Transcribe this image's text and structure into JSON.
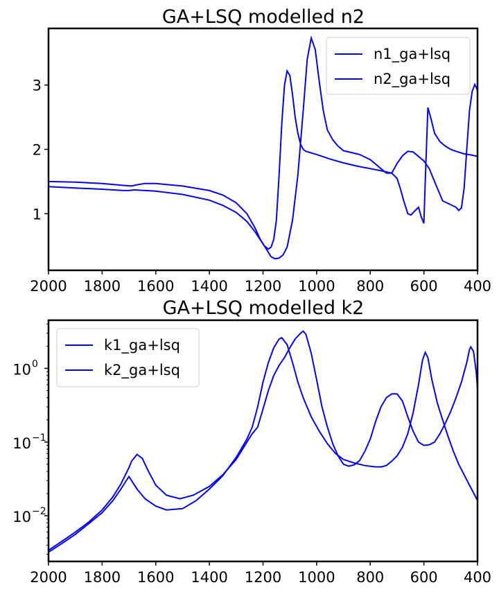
{
  "chart_data": [
    {
      "type": "line",
      "title": "GA+LSQ modelled n2",
      "xlabel": "",
      "ylabel": "",
      "xlim": [
        2000,
        400
      ],
      "ylim": [
        0.12,
        3.88
      ],
      "yscale": "linear",
      "xticks": [
        2000,
        1800,
        1600,
        1400,
        1200,
        1000,
        800,
        600,
        400
      ],
      "yticks": [
        1,
        2,
        3
      ],
      "legend_position": "top-right",
      "line_color": "#0000ff",
      "series": [
        {
          "name": "n1_ga+lsq",
          "points": [
            [
              2000,
              1.5
            ],
            [
              1900,
              1.49
            ],
            [
              1800,
              1.47
            ],
            [
              1720,
              1.44
            ],
            [
              1690,
              1.43
            ],
            [
              1670,
              1.45
            ],
            [
              1640,
              1.47
            ],
            [
              1600,
              1.47
            ],
            [
              1500,
              1.43
            ],
            [
              1400,
              1.36
            ],
            [
              1350,
              1.29
            ],
            [
              1300,
              1.17
            ],
            [
              1260,
              1.0
            ],
            [
              1230,
              0.78
            ],
            [
              1210,
              0.6
            ],
            [
              1195,
              0.5
            ],
            [
              1180,
              0.45
            ],
            [
              1170,
              0.48
            ],
            [
              1160,
              0.6
            ],
            [
              1150,
              0.9
            ],
            [
              1140,
              1.6
            ],
            [
              1130,
              2.4
            ],
            [
              1120,
              3.0
            ],
            [
              1110,
              3.22
            ],
            [
              1100,
              3.15
            ],
            [
              1090,
              2.85
            ],
            [
              1080,
              2.5
            ],
            [
              1070,
              2.25
            ],
            [
              1060,
              2.08
            ],
            [
              1050,
              2.0
            ],
            [
              1040,
              1.97
            ],
            [
              1000,
              1.92
            ],
            [
              950,
              1.85
            ],
            [
              900,
              1.79
            ],
            [
              850,
              1.74
            ],
            [
              800,
              1.7
            ],
            [
              750,
              1.66
            ],
            [
              720,
              1.63
            ],
            [
              700,
              1.55
            ],
            [
              690,
              1.42
            ],
            [
              675,
              1.2
            ],
            [
              660,
              1.0
            ],
            [
              648,
              0.98
            ],
            [
              637,
              1.03
            ],
            [
              620,
              1.1
            ],
            [
              610,
              0.95
            ],
            [
              600,
              0.85
            ],
            [
              595,
              1.5
            ],
            [
              585,
              2.65
            ],
            [
              575,
              2.5
            ],
            [
              560,
              2.25
            ],
            [
              540,
              2.12
            ],
            [
              520,
              2.05
            ],
            [
              500,
              2.0
            ],
            [
              480,
              1.97
            ],
            [
              450,
              1.93
            ],
            [
              420,
              1.91
            ],
            [
              400,
              1.89
            ]
          ]
        },
        {
          "name": "n2_ga+lsq",
          "points": [
            [
              2000,
              1.42
            ],
            [
              1900,
              1.4
            ],
            [
              1800,
              1.38
            ],
            [
              1720,
              1.36
            ],
            [
              1700,
              1.36
            ],
            [
              1680,
              1.37
            ],
            [
              1600,
              1.35
            ],
            [
              1500,
              1.3
            ],
            [
              1400,
              1.21
            ],
            [
              1350,
              1.13
            ],
            [
              1300,
              1.02
            ],
            [
              1260,
              0.88
            ],
            [
              1230,
              0.72
            ],
            [
              1200,
              0.53
            ],
            [
              1180,
              0.4
            ],
            [
              1170,
              0.33
            ],
            [
              1155,
              0.3
            ],
            [
              1140,
              0.31
            ],
            [
              1125,
              0.36
            ],
            [
              1110,
              0.48
            ],
            [
              1090,
              0.9
            ],
            [
              1070,
              1.6
            ],
            [
              1050,
              2.6
            ],
            [
              1035,
              3.4
            ],
            [
              1020,
              3.73
            ],
            [
              1005,
              3.55
            ],
            [
              990,
              3.05
            ],
            [
              975,
              2.6
            ],
            [
              960,
              2.3
            ],
            [
              940,
              2.15
            ],
            [
              920,
              2.05
            ],
            [
              900,
              1.98
            ],
            [
              870,
              1.95
            ],
            [
              840,
              1.92
            ],
            [
              800,
              1.84
            ],
            [
              760,
              1.7
            ],
            [
              740,
              1.63
            ],
            [
              720,
              1.63
            ],
            [
              700,
              1.78
            ],
            [
              680,
              1.9
            ],
            [
              660,
              1.97
            ],
            [
              640,
              1.96
            ],
            [
              620,
              1.89
            ],
            [
              600,
              1.82
            ],
            [
              580,
              1.7
            ],
            [
              555,
              1.45
            ],
            [
              530,
              1.2
            ],
            [
              505,
              1.15
            ],
            [
              480,
              1.1
            ],
            [
              470,
              1.05
            ],
            [
              460,
              1.09
            ],
            [
              450,
              1.4
            ],
            [
              440,
              2.0
            ],
            [
              430,
              2.6
            ],
            [
              420,
              2.9
            ],
            [
              410,
              3.01
            ],
            [
              403,
              2.95
            ],
            [
              400,
              2.9
            ]
          ]
        }
      ]
    },
    {
      "type": "line",
      "title": "GA+LSQ modelled k2",
      "xlabel": "",
      "ylabel": "",
      "xlim": [
        2000,
        400
      ],
      "ylim": [
        0.0024,
        4.5
      ],
      "yscale": "log",
      "xticks": [
        2000,
        1800,
        1600,
        1400,
        1200,
        1000,
        800,
        600,
        400
      ],
      "yticks": [
        {
          "base": "10",
          "exp": "0",
          "value": 1
        },
        {
          "base": "10",
          "exp": "−1",
          "value": 0.1
        },
        {
          "base": "10",
          "exp": "−2",
          "value": 0.01
        }
      ],
      "legend_position": "top-left",
      "line_color": "#0000ff",
      "series": [
        {
          "name": "k1_ga+lsq",
          "points": [
            [
              2000,
              0.0032
            ],
            [
              1950,
              0.0042
            ],
            [
              1900,
              0.0056
            ],
            [
              1850,
              0.0078
            ],
            [
              1800,
              0.011
            ],
            [
              1760,
              0.016
            ],
            [
              1730,
              0.023
            ],
            [
              1710,
              0.03
            ],
            [
              1700,
              0.034
            ],
            [
              1690,
              0.03
            ],
            [
              1670,
              0.023
            ],
            [
              1640,
              0.017
            ],
            [
              1600,
              0.0135
            ],
            [
              1560,
              0.012
            ],
            [
              1500,
              0.0125
            ],
            [
              1450,
              0.016
            ],
            [
              1400,
              0.023
            ],
            [
              1350,
              0.035
            ],
            [
              1300,
              0.062
            ],
            [
              1260,
              0.11
            ],
            [
              1240,
              0.16
            ],
            [
              1220,
              0.3
            ],
            [
              1200,
              0.65
            ],
            [
              1180,
              1.2
            ],
            [
              1160,
              1.9
            ],
            [
              1140,
              2.5
            ],
            [
              1130,
              2.6
            ],
            [
              1110,
              2.1
            ],
            [
              1090,
              1.2
            ],
            [
              1070,
              0.65
            ],
            [
              1050,
              0.4
            ],
            [
              1020,
              0.22
            ],
            [
              990,
              0.14
            ],
            [
              960,
              0.095
            ],
            [
              930,
              0.07
            ],
            [
              900,
              0.058
            ],
            [
              860,
              0.052
            ],
            [
              820,
              0.048
            ],
            [
              780,
              0.046
            ],
            [
              760,
              0.046
            ],
            [
              740,
              0.048
            ],
            [
              720,
              0.055
            ],
            [
              700,
              0.065
            ],
            [
              680,
              0.085
            ],
            [
              660,
              0.13
            ],
            [
              640,
              0.25
            ],
            [
              620,
              0.6
            ],
            [
              605,
              1.3
            ],
            [
              595,
              1.65
            ],
            [
              585,
              1.4
            ],
            [
              570,
              0.7
            ],
            [
              550,
              0.34
            ],
            [
              530,
              0.2
            ],
            [
              510,
              0.12
            ],
            [
              490,
              0.075
            ],
            [
              470,
              0.05
            ],
            [
              450,
              0.036
            ],
            [
              430,
              0.026
            ],
            [
              410,
              0.019
            ],
            [
              400,
              0.016
            ]
          ]
        },
        {
          "name": "k2_ga+lsq",
          "points": [
            [
              2000,
              0.0034
            ],
            [
              1950,
              0.0045
            ],
            [
              1900,
              0.006
            ],
            [
              1850,
              0.0082
            ],
            [
              1800,
              0.012
            ],
            [
              1760,
              0.018
            ],
            [
              1730,
              0.027
            ],
            [
              1700,
              0.045
            ],
            [
              1690,
              0.055
            ],
            [
              1670,
              0.068
            ],
            [
              1650,
              0.06
            ],
            [
              1630,
              0.042
            ],
            [
              1600,
              0.026
            ],
            [
              1560,
              0.019
            ],
            [
              1510,
              0.017
            ],
            [
              1460,
              0.019
            ],
            [
              1400,
              0.025
            ],
            [
              1350,
              0.036
            ],
            [
              1300,
              0.058
            ],
            [
              1260,
              0.1
            ],
            [
              1240,
              0.13
            ],
            [
              1220,
              0.16
            ],
            [
              1200,
              0.28
            ],
            [
              1180,
              0.5
            ],
            [
              1160,
              0.8
            ],
            [
              1140,
              1.1
            ],
            [
              1120,
              1.4
            ],
            [
              1100,
              1.9
            ],
            [
              1080,
              2.5
            ],
            [
              1060,
              3.0
            ],
            [
              1050,
              3.2
            ],
            [
              1040,
              2.9
            ],
            [
              1020,
              1.6
            ],
            [
              1000,
              0.7
            ],
            [
              980,
              0.3
            ],
            [
              960,
              0.16
            ],
            [
              940,
              0.095
            ],
            [
              920,
              0.065
            ],
            [
              900,
              0.05
            ],
            [
              880,
              0.047
            ],
            [
              860,
              0.049
            ],
            [
              840,
              0.056
            ],
            [
              820,
              0.075
            ],
            [
              800,
              0.11
            ],
            [
              780,
              0.19
            ],
            [
              760,
              0.3
            ],
            [
              740,
              0.4
            ],
            [
              720,
              0.45
            ],
            [
              700,
              0.45
            ],
            [
              680,
              0.36
            ],
            [
              660,
              0.22
            ],
            [
              640,
              0.14
            ],
            [
              620,
              0.1
            ],
            [
              600,
              0.09
            ],
            [
              580,
              0.092
            ],
            [
              560,
              0.1
            ],
            [
              540,
              0.13
            ],
            [
              520,
              0.18
            ],
            [
              500,
              0.26
            ],
            [
              480,
              0.4
            ],
            [
              460,
              0.65
            ],
            [
              440,
              1.2
            ],
            [
              430,
              1.8
            ],
            [
              425,
              1.95
            ],
            [
              415,
              1.7
            ],
            [
              405,
              0.9
            ],
            [
              400,
              0.52
            ]
          ]
        }
      ]
    }
  ]
}
